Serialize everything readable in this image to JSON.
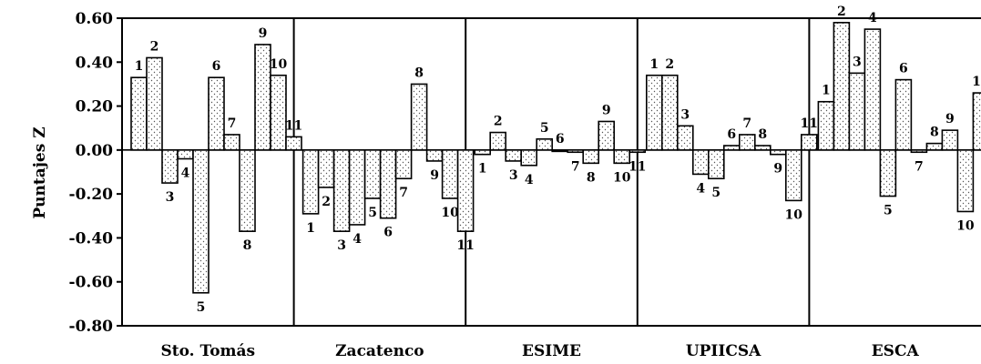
{
  "chart_data": {
    "type": "bar",
    "title": "",
    "xlabel": "",
    "ylabel": "Puntajes Z",
    "ylim": [
      -0.8,
      0.6
    ],
    "yticks": [
      "-0.80",
      "-0.60",
      "-0.40",
      "-0.20",
      "0.00",
      "0.20",
      "0.40",
      "0.60"
    ],
    "grid": false,
    "bar_pattern": "dotted",
    "bar_labels": [
      "1",
      "2",
      "3",
      "4",
      "5",
      "6",
      "7",
      "8",
      "9",
      "10",
      "11"
    ],
    "groups": [
      {
        "name": "Sto. Tomás",
        "values": [
          0.33,
          0.42,
          -0.15,
          -0.04,
          -0.65,
          0.33,
          0.07,
          -0.37,
          0.48,
          0.34,
          0.06
        ]
      },
      {
        "name": "Zacatenco",
        "values": [
          -0.29,
          -0.17,
          -0.37,
          -0.34,
          -0.22,
          -0.31,
          -0.13,
          0.3,
          -0.05,
          -0.22,
          -0.37
        ]
      },
      {
        "name": "ESIME",
        "values": [
          -0.02,
          0.08,
          -0.05,
          -0.07,
          0.05,
          0.0,
          -0.01,
          -0.06,
          0.13,
          -0.06,
          -0.01
        ]
      },
      {
        "name": "UPIICSA",
        "values": [
          0.34,
          0.34,
          0.11,
          -0.11,
          -0.13,
          0.02,
          0.07,
          0.02,
          -0.02,
          -0.23,
          0.07
        ]
      },
      {
        "name": "ESCA",
        "values": [
          0.22,
          0.58,
          0.35,
          0.55,
          -0.21,
          0.32,
          -0.01,
          0.03,
          0.09,
          -0.28,
          0.26
        ]
      }
    ]
  }
}
